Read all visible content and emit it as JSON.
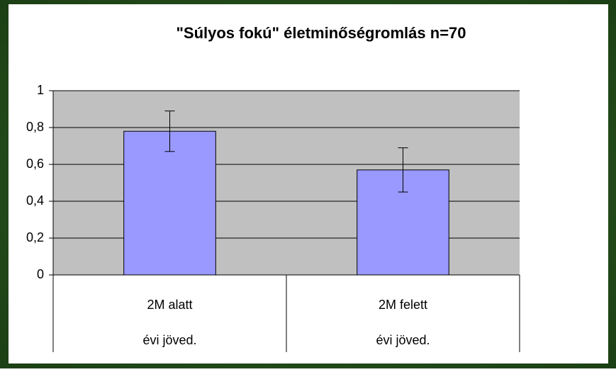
{
  "chart_data": {
    "type": "bar",
    "title": "\"Súlyos fokú\" életminőségromlás n=70",
    "categories": [
      "2M alatt",
      "2M felett"
    ],
    "category_sublabels": [
      "évi jöved.",
      "évi jöved."
    ],
    "values": [
      0.78,
      0.57
    ],
    "errors": [
      0.11,
      0.12
    ],
    "color": "#9999ff",
    "ylim": [
      0,
      1
    ],
    "yticks": [
      0,
      {
        "value": 0.2,
        "label": "0,2"
      },
      {
        "value": 0.4,
        "label": "0,4"
      },
      {
        "value": 0.6,
        "label": "0,6"
      },
      {
        "value": 0.8,
        "label": "0,8"
      },
      1
    ],
    "grid": true
  }
}
